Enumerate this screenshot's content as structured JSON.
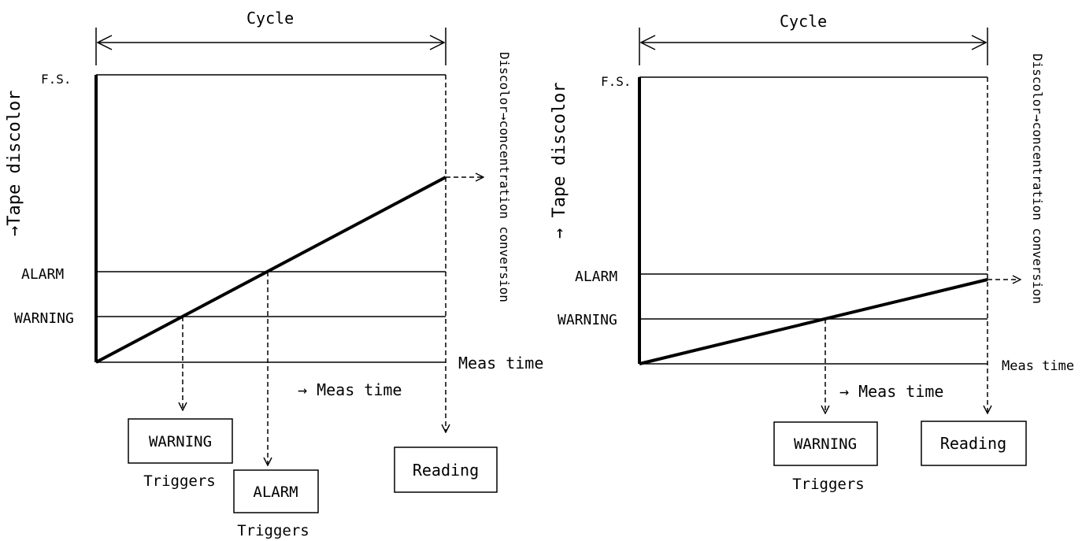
{
  "left": {
    "cycle_label": "Cycle",
    "fs_label": "F.S.",
    "y_axis_label": "→Tape discolor",
    "alarm_label": "ALARM",
    "warning_label": "WARNING",
    "meas_time_label": "Meas time",
    "meas_time_arrow_label": "→ Meas time",
    "conversion_label": "Discolor→concentration conversion",
    "warning_box": "WARNING",
    "alarm_box": "ALARM",
    "reading_box": "Reading",
    "warning_triggers": "Triggers",
    "alarm_triggers": "Triggers"
  },
  "right": {
    "cycle_label": "Cycle",
    "fs_label": "F.S.",
    "y_axis_label": "→ Tape discolor",
    "alarm_label": "ALARM",
    "warning_label": "WARNING",
    "meas_time_label": "Meas time",
    "meas_time_arrow_label": "→ Meas time",
    "conversion_label": "Discolor→concentration conversion",
    "warning_box": "WARNING",
    "reading_box": "Reading",
    "warning_triggers": "Triggers"
  }
}
